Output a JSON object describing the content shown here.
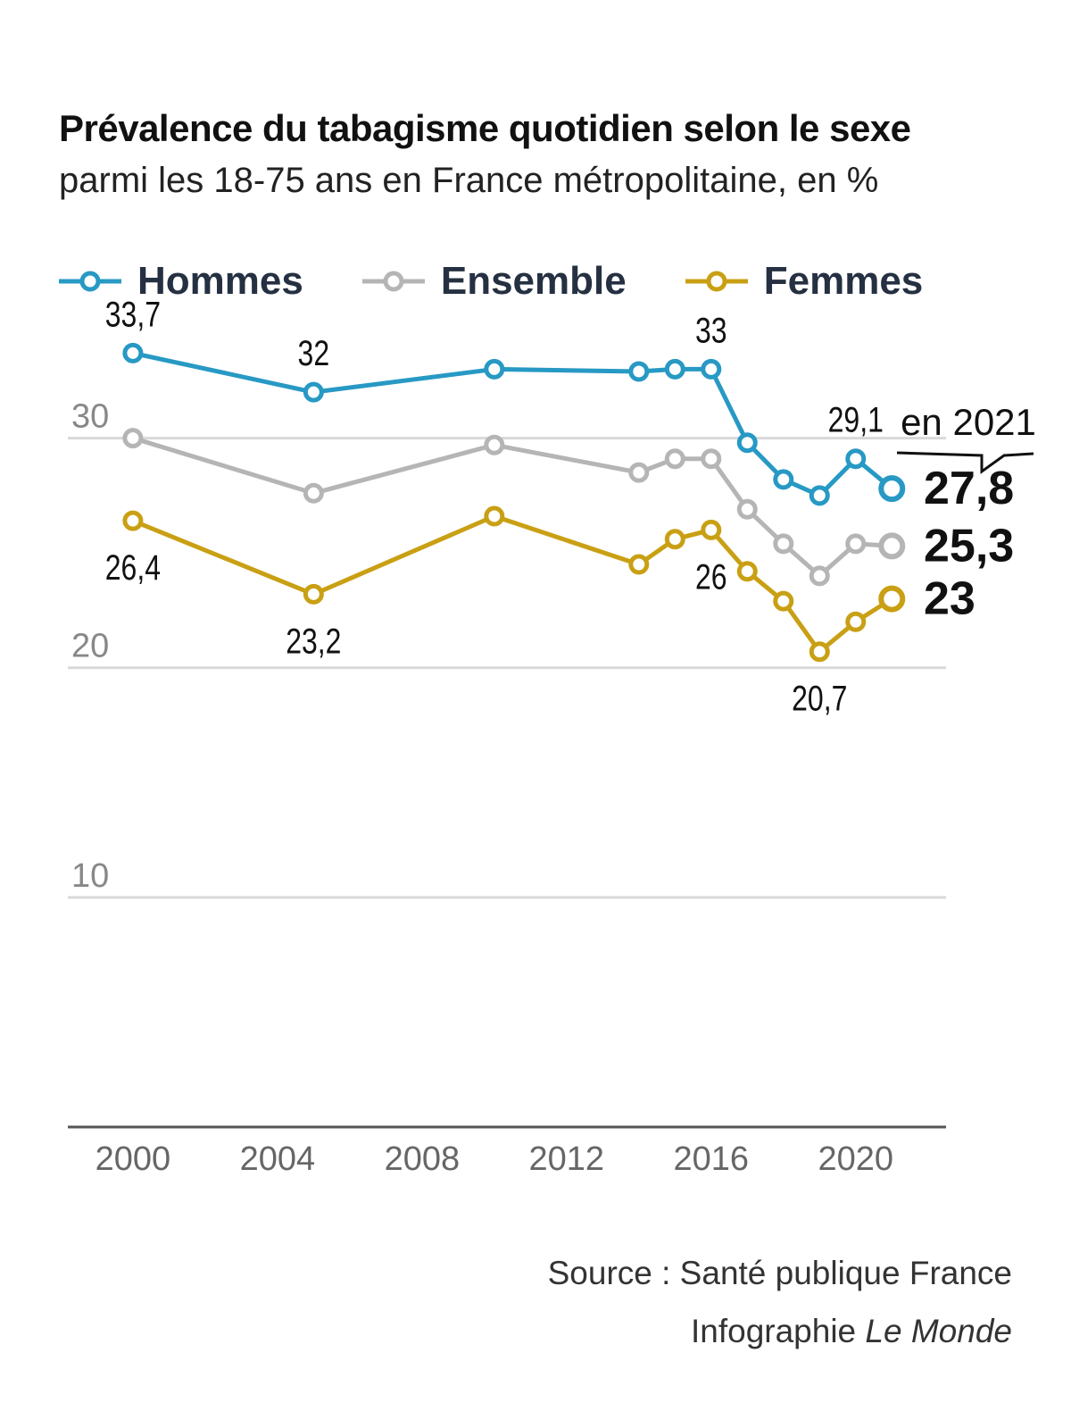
{
  "title": "Prévalence du tabagisme quotidien selon le sexe",
  "subtitle": "parmi les 18-75 ans en France métropolitaine, en %",
  "colors": {
    "hommes": "#2799c4",
    "ensemble": "#b5b5b5",
    "femmes": "#c9a014",
    "grid": "#d9d9d9",
    "axis": "#555555"
  },
  "chart_data": {
    "type": "line",
    "x": [
      2000,
      2005,
      2010,
      2014,
      2015,
      2016,
      2017,
      2018,
      2019,
      2020,
      2021
    ],
    "series": [
      {
        "name": "Hommes",
        "key": "hommes",
        "values": [
          33.7,
          32.0,
          33.0,
          32.9,
          33.0,
          33.0,
          29.8,
          28.2,
          27.5,
          29.1,
          27.8
        ]
      },
      {
        "name": "Ensemble",
        "key": "ensemble",
        "values": [
          30.0,
          27.6,
          29.7,
          28.5,
          29.1,
          29.1,
          26.9,
          25.4,
          24.0,
          25.4,
          25.3
        ]
      },
      {
        "name": "Femmes",
        "key": "femmes",
        "values": [
          26.4,
          23.2,
          26.6,
          24.5,
          25.6,
          26.0,
          24.2,
          22.9,
          20.7,
          22.0,
          23.0
        ]
      }
    ],
    "point_labels": [
      {
        "series": "hommes",
        "index": 0,
        "text": "33,7",
        "pos": "above"
      },
      {
        "series": "hommes",
        "index": 1,
        "text": "32",
        "pos": "above"
      },
      {
        "series": "hommes",
        "index": 5,
        "text": "33",
        "pos": "above"
      },
      {
        "series": "hommes",
        "index": 9,
        "text": "29,1",
        "pos": "above"
      },
      {
        "series": "femmes",
        "index": 0,
        "text": "26,4",
        "pos": "below"
      },
      {
        "series": "femmes",
        "index": 1,
        "text": "23,2",
        "pos": "below"
      },
      {
        "series": "femmes",
        "index": 5,
        "text": "26",
        "pos": "below"
      },
      {
        "series": "femmes",
        "index": 8,
        "text": "20,7",
        "pos": "below"
      }
    ],
    "end_labels": [
      {
        "series": "hommes",
        "text": "27,8"
      },
      {
        "series": "ensemble",
        "text": "25,3"
      },
      {
        "series": "femmes",
        "text": "23"
      }
    ],
    "end_annotation": "en 2021",
    "y_ticks": [
      {
        "value": 10,
        "label": "10"
      },
      {
        "value": 20,
        "label": "20"
      },
      {
        "value": 30,
        "label": "30"
      }
    ],
    "x_ticks": [
      {
        "value": 2000,
        "label": "2000"
      },
      {
        "value": 2004,
        "label": "2004"
      },
      {
        "value": 2008,
        "label": "2008"
      },
      {
        "value": 2012,
        "label": "2012"
      },
      {
        "value": 2016,
        "label": "2016"
      },
      {
        "value": 2020,
        "label": "2020"
      }
    ],
    "xlim": [
      1998.2,
      2022.5
    ],
    "ylim": [
      0,
      35
    ],
    "grid": true,
    "legend": "top"
  },
  "source": {
    "line1": "Source : Santé publique France",
    "credit_prefix": "Infographie ",
    "credit_name": "Le Monde"
  }
}
